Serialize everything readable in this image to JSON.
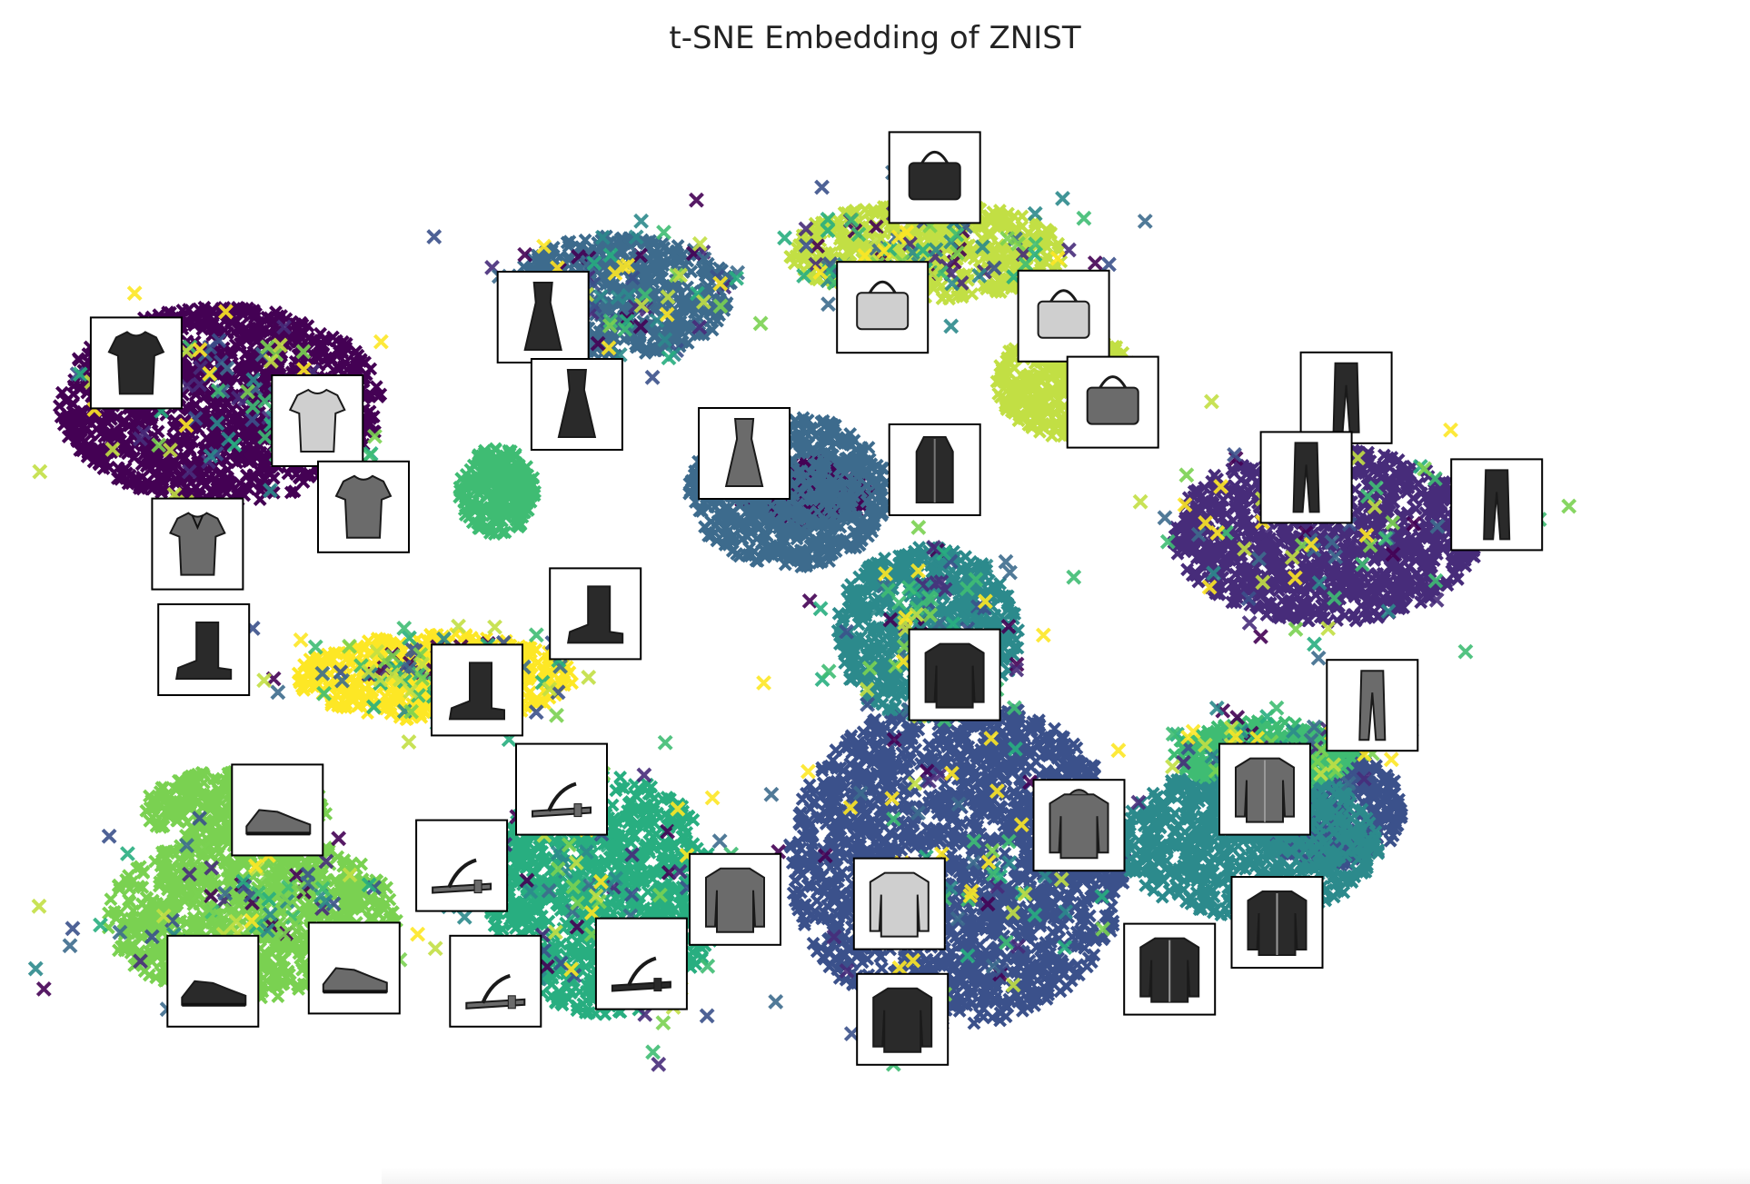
{
  "chart_data": {
    "type": "scatter",
    "title": "t-SNE Embedding of ZNIST",
    "xlabel": "",
    "ylabel": "",
    "axes_visible": false,
    "grid": false,
    "legend": "none",
    "marker": "x",
    "colormap": "viridis",
    "clusters": [
      {
        "id": "tshirt",
        "color": "#440154",
        "icon": "tshirt-icon",
        "blobs": [
          [
            0.12,
            0.3,
            0.21,
            0.18
          ],
          [
            0.5,
            0.38,
            0.09,
            0.06
          ]
        ]
      },
      {
        "id": "trouser",
        "color": "#472c7a",
        "icon": "trouser-icon",
        "blobs": [
          [
            0.84,
            0.42,
            0.2,
            0.16
          ]
        ]
      },
      {
        "id": "pullover",
        "color": "#3b518b",
        "icon": "pullover-icon",
        "blobs": [
          [
            0.6,
            0.72,
            0.22,
            0.3
          ],
          [
            0.84,
            0.67,
            0.1,
            0.11
          ]
        ]
      },
      {
        "id": "dress",
        "color": "#3d6b8d",
        "icon": "dress-icon",
        "blobs": [
          [
            0.38,
            0.2,
            0.15,
            0.11
          ],
          [
            0.49,
            0.38,
            0.13,
            0.14
          ]
        ]
      },
      {
        "id": "coat",
        "color": "#2c8a8c",
        "icon": "coat-icon",
        "blobs": [
          [
            0.58,
            0.51,
            0.12,
            0.16
          ],
          [
            0.79,
            0.7,
            0.17,
            0.14
          ]
        ]
      },
      {
        "id": "sandal",
        "color": "#28ae80",
        "icon": "sandal-icon",
        "blobs": [
          [
            0.37,
            0.75,
            0.15,
            0.22
          ]
        ]
      },
      {
        "id": "shirt",
        "color": "#3fbc73",
        "icon": "shirt-icon",
        "blobs": [
          [
            0.8,
            0.62,
            0.12,
            0.06
          ],
          [
            0.3,
            0.38,
            0.05,
            0.08
          ]
        ]
      },
      {
        "id": "sneaker",
        "color": "#7ad151",
        "icon": "sneaker-icon",
        "blobs": [
          [
            0.14,
            0.77,
            0.19,
            0.15
          ],
          [
            0.13,
            0.67,
            0.12,
            0.07
          ]
        ]
      },
      {
        "id": "bag",
        "color": "#c2df44",
        "icon": "bag-icon",
        "blobs": [
          [
            0.58,
            0.16,
            0.18,
            0.09
          ],
          [
            0.67,
            0.28,
            0.09,
            0.1
          ]
        ]
      },
      {
        "id": "ankle-boot",
        "color": "#fde725",
        "icon": "ankle-boot-icon",
        "blobs": [
          [
            0.26,
            0.55,
            0.18,
            0.08
          ]
        ]
      }
    ],
    "thumbnails": [
      {
        "icon": "tshirt-icon",
        "cluster": "tshirt",
        "shade": "dark",
        "x": 0.065,
        "y": 0.262
      },
      {
        "icon": "tshirt-icon",
        "cluster": "tshirt",
        "shade": "light",
        "x": 0.183,
        "y": 0.315
      },
      {
        "icon": "tshirt-icon",
        "cluster": "tshirt",
        "shade": "mid",
        "x": 0.213,
        "y": 0.394
      },
      {
        "icon": "polo-shirt-icon",
        "cluster": "tshirt",
        "shade": "mid",
        "x": 0.105,
        "y": 0.428
      },
      {
        "icon": "dress-icon",
        "cluster": "dress",
        "shade": "dark",
        "x": 0.33,
        "y": 0.22
      },
      {
        "icon": "dress-icon",
        "cluster": "dress",
        "shade": "dark",
        "x": 0.352,
        "y": 0.3
      },
      {
        "icon": "dress-icon",
        "cluster": "dress",
        "shade": "mid",
        "x": 0.461,
        "y": 0.345
      },
      {
        "icon": "coat-icon",
        "cluster": "coat",
        "shade": "dark",
        "x": 0.585,
        "y": 0.36
      },
      {
        "icon": "bag-icon",
        "cluster": "bag",
        "shade": "dark",
        "x": 0.585,
        "y": 0.092
      },
      {
        "icon": "bag-icon",
        "cluster": "bag",
        "shade": "light",
        "x": 0.551,
        "y": 0.211
      },
      {
        "icon": "bag-icon",
        "cluster": "bag",
        "shade": "light",
        "x": 0.669,
        "y": 0.219
      },
      {
        "icon": "bag-icon",
        "cluster": "bag",
        "shade": "mid",
        "x": 0.701,
        "y": 0.298
      },
      {
        "icon": "trouser-icon",
        "cluster": "trouser",
        "shade": "dark",
        "x": 0.853,
        "y": 0.294
      },
      {
        "icon": "trouser-icon",
        "cluster": "trouser",
        "shade": "dark",
        "x": 0.827,
        "y": 0.367
      },
      {
        "icon": "trouser-icon",
        "cluster": "trouser",
        "shade": "dark",
        "x": 0.951,
        "y": 0.392
      },
      {
        "icon": "trouser-icon",
        "cluster": "trouser",
        "shade": "mid",
        "x": 0.87,
        "y": 0.576
      },
      {
        "icon": "ankle-boot-icon",
        "cluster": "ankle-boot",
        "shade": "dark",
        "x": 0.109,
        "y": 0.525
      },
      {
        "icon": "ankle-boot-icon",
        "cluster": "ankle-boot",
        "shade": "dark",
        "x": 0.287,
        "y": 0.562
      },
      {
        "icon": "ankle-boot-icon",
        "cluster": "ankle-boot",
        "shade": "dark",
        "x": 0.364,
        "y": 0.492
      },
      {
        "icon": "sneaker-icon",
        "cluster": "sneaker",
        "shade": "mid",
        "x": 0.157,
        "y": 0.672
      },
      {
        "icon": "sneaker-icon",
        "cluster": "sneaker",
        "shade": "dark",
        "x": 0.115,
        "y": 0.829
      },
      {
        "icon": "sneaker-icon",
        "cluster": "sneaker",
        "shade": "mid",
        "x": 0.207,
        "y": 0.817
      },
      {
        "icon": "sandal-icon",
        "cluster": "sandal",
        "shade": "mid",
        "x": 0.342,
        "y": 0.653
      },
      {
        "icon": "sandal-icon",
        "cluster": "sandal",
        "shade": "mid",
        "x": 0.277,
        "y": 0.723
      },
      {
        "icon": "sandal-icon",
        "cluster": "sandal",
        "shade": "mid",
        "x": 0.299,
        "y": 0.829
      },
      {
        "icon": "sandal-icon",
        "cluster": "sandal",
        "shade": "dark",
        "x": 0.394,
        "y": 0.813
      },
      {
        "icon": "pullover-icon",
        "cluster": "pullover",
        "shade": "dark",
        "x": 0.598,
        "y": 0.548
      },
      {
        "icon": "pullover-icon",
        "cluster": "pullover",
        "shade": "mid",
        "x": 0.455,
        "y": 0.754
      },
      {
        "icon": "pullover-icon",
        "cluster": "pullover",
        "shade": "light",
        "x": 0.562,
        "y": 0.758
      },
      {
        "icon": "pullover-icon",
        "cluster": "pullover",
        "shade": "dark",
        "x": 0.564,
        "y": 0.864
      },
      {
        "icon": "hoodie-icon",
        "cluster": "coat",
        "shade": "mid",
        "x": 0.679,
        "y": 0.686
      },
      {
        "icon": "shirt-icon",
        "cluster": "shirt",
        "shade": "mid",
        "x": 0.8,
        "y": 0.653
      },
      {
        "icon": "jacket-icon",
        "cluster": "coat",
        "shade": "dark",
        "x": 0.808,
        "y": 0.775
      },
      {
        "icon": "jacket-icon",
        "cluster": "coat",
        "shade": "dark",
        "x": 0.738,
        "y": 0.818
      }
    ]
  }
}
